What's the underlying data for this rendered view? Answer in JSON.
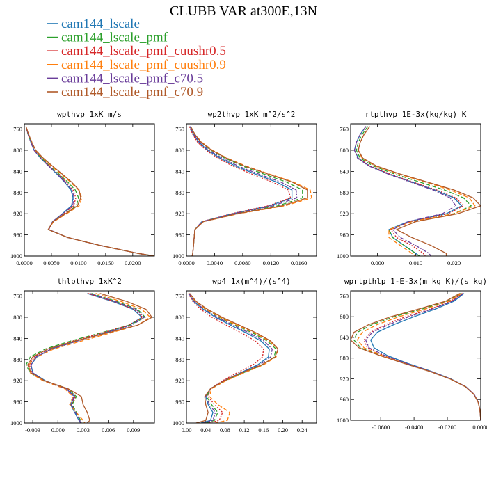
{
  "title": "CLUBB VAR at300E,13N",
  "series": [
    {
      "name": "cam144_lscale",
      "color": "#1f77b4",
      "dash": "solid"
    },
    {
      "name": "cam144_lscale_pmf",
      "color": "#2ca02c",
      "dash": "longdash"
    },
    {
      "name": "cam144_lscale_pmf_cuushr0.5",
      "color": "#d62728",
      "dash": "dot"
    },
    {
      "name": "cam144_lscale_pmf_cuushr0.9",
      "color": "#ff7f0e",
      "dash": "longdash"
    },
    {
      "name": "cam144_lscale_pmf_c70.5",
      "color": "#6a3d9a",
      "dash": "dashdot"
    },
    {
      "name": "cam144_lscale_pmf_c70.9",
      "color": "#b05a2a",
      "dash": "solid"
    }
  ],
  "chart_data": [
    {
      "type": "line",
      "title": "wpthvp  1xK m/s",
      "xlim": [
        0,
        0.024
      ],
      "ylim": [
        1000,
        750
      ],
      "xticks": [
        "0.0000",
        "0.0050",
        "0.0100",
        "0.0150",
        "0.0200"
      ],
      "xtick_values": [
        0,
        0.005,
        0.01,
        0.015,
        0.02
      ],
      "yticks": [
        760,
        800,
        840,
        880,
        920,
        960,
        1000
      ],
      "y": [
        755,
        770,
        785,
        800,
        815,
        830,
        845,
        860,
        875,
        890,
        905,
        920,
        935,
        950,
        965,
        980,
        995,
        1000
      ],
      "series_values": [
        [
          0.0003,
          0.0007,
          0.0012,
          0.0018,
          0.003,
          0.0045,
          0.006,
          0.0074,
          0.0086,
          0.009,
          0.0087,
          0.007,
          0.0052,
          0.0045,
          0.008,
          0.014,
          0.021,
          0.024
        ],
        [
          0.0003,
          0.0007,
          0.0013,
          0.0019,
          0.0032,
          0.0047,
          0.0064,
          0.008,
          0.0094,
          0.01,
          0.0096,
          0.0075,
          0.0053,
          0.0044,
          0.008,
          0.014,
          0.021,
          0.024
        ],
        [
          0.0003,
          0.0007,
          0.0012,
          0.0018,
          0.0031,
          0.0046,
          0.0062,
          0.0077,
          0.009,
          0.0095,
          0.0091,
          0.0072,
          0.0052,
          0.0045,
          0.008,
          0.014,
          0.021,
          0.024
        ],
        [
          0.0003,
          0.0008,
          0.0014,
          0.002,
          0.0034,
          0.005,
          0.0068,
          0.0085,
          0.01,
          0.0106,
          0.0101,
          0.0078,
          0.0054,
          0.0044,
          0.008,
          0.014,
          0.021,
          0.024
        ],
        [
          0.0003,
          0.0007,
          0.0012,
          0.0018,
          0.003,
          0.0045,
          0.0061,
          0.0075,
          0.0088,
          0.0092,
          0.0089,
          0.0071,
          0.0052,
          0.0045,
          0.008,
          0.014,
          0.021,
          0.024
        ],
        [
          0.0003,
          0.0008,
          0.0014,
          0.0021,
          0.0035,
          0.0052,
          0.007,
          0.0087,
          0.0101,
          0.0104,
          0.0098,
          0.0076,
          0.0053,
          0.0044,
          0.008,
          0.014,
          0.021,
          0.024
        ]
      ]
    },
    {
      "type": "line",
      "title": "wp2thvp  1xK m^2/s^2",
      "xlim": [
        0,
        0.0185
      ],
      "ylim": [
        1000,
        750
      ],
      "xticks": [
        "0.0000",
        "0.0040",
        "0.0080",
        "0.0120",
        "0.0160"
      ],
      "xtick_values": [
        0,
        0.004,
        0.008,
        0.012,
        0.016
      ],
      "yticks": [
        760,
        800,
        840,
        880,
        920,
        960,
        1000
      ],
      "y": [
        755,
        770,
        785,
        800,
        815,
        830,
        845,
        860,
        875,
        890,
        905,
        920,
        935,
        950,
        965,
        980,
        995,
        1000
      ],
      "series_values": [
        [
          0.0005,
          0.001,
          0.0018,
          0.003,
          0.0048,
          0.007,
          0.0098,
          0.0128,
          0.015,
          0.015,
          0.0118,
          0.0065,
          0.0022,
          0.0012,
          0.0011,
          0.001,
          0.0009,
          0.0008
        ],
        [
          0.0006,
          0.0012,
          0.0021,
          0.0035,
          0.0055,
          0.008,
          0.011,
          0.0142,
          0.0165,
          0.0165,
          0.013,
          0.007,
          0.0023,
          0.0012,
          0.0011,
          0.001,
          0.0009,
          0.0008
        ],
        [
          0.0004,
          0.0009,
          0.0016,
          0.0028,
          0.0045,
          0.0066,
          0.0093,
          0.0122,
          0.0145,
          0.0148,
          0.0116,
          0.0064,
          0.0022,
          0.0012,
          0.0011,
          0.001,
          0.0009,
          0.0008
        ],
        [
          0.0006,
          0.0012,
          0.0022,
          0.0037,
          0.0058,
          0.0085,
          0.0118,
          0.0152,
          0.0176,
          0.0178,
          0.014,
          0.0074,
          0.0024,
          0.0012,
          0.0011,
          0.001,
          0.0009,
          0.0008
        ],
        [
          0.0005,
          0.0011,
          0.0019,
          0.0032,
          0.0051,
          0.0074,
          0.0103,
          0.0134,
          0.0156,
          0.0157,
          0.0123,
          0.0067,
          0.0022,
          0.0012,
          0.0011,
          0.001,
          0.0009,
          0.0008
        ],
        [
          0.0006,
          0.0012,
          0.0021,
          0.0036,
          0.0057,
          0.0083,
          0.0116,
          0.015,
          0.0172,
          0.0172,
          0.0136,
          0.0072,
          0.0024,
          0.0012,
          0.0011,
          0.001,
          0.0009,
          0.0008
        ]
      ]
    },
    {
      "type": "line",
      "title": "rtpthvp  1E-3x(kg/kg) K",
      "xlim": [
        -0.007,
        0.027
      ],
      "ylim": [
        1000,
        750
      ],
      "xticks": [
        "0.000",
        "0.010",
        "0.020"
      ],
      "xtick_values": [
        0,
        0.01,
        0.02
      ],
      "yticks": [
        760,
        800,
        840,
        880,
        920,
        960,
        1000
      ],
      "y": [
        755,
        770,
        785,
        800,
        815,
        830,
        845,
        860,
        875,
        890,
        905,
        920,
        935,
        950,
        965,
        980,
        995,
        1000
      ],
      "series_values": [
        [
          -0.003,
          -0.0045,
          -0.0055,
          -0.006,
          -0.005,
          -0.002,
          0.003,
          0.009,
          0.015,
          0.02,
          0.022,
          0.018,
          0.008,
          0.003,
          0.004,
          0.007,
          0.01,
          0.011
        ],
        [
          -0.0025,
          -0.004,
          -0.005,
          -0.0055,
          -0.0045,
          -0.001,
          0.0045,
          0.011,
          0.0175,
          0.0225,
          0.0245,
          0.02,
          0.009,
          0.003,
          0.004,
          0.007,
          0.01,
          0.011
        ],
        [
          -0.003,
          -0.0045,
          -0.0055,
          -0.006,
          -0.005,
          -0.0018,
          0.0033,
          0.0093,
          0.0155,
          0.0205,
          0.0225,
          0.0185,
          0.0085,
          0.0035,
          0.005,
          0.009,
          0.012,
          0.0125
        ],
        [
          -0.002,
          -0.0035,
          -0.0045,
          -0.005,
          -0.004,
          -0.0005,
          0.0055,
          0.0125,
          0.019,
          0.024,
          0.0255,
          0.02,
          0.009,
          0.003,
          0.003,
          0.006,
          0.009,
          0.01
        ],
        [
          -0.003,
          -0.0045,
          -0.0055,
          -0.006,
          -0.0052,
          -0.0022,
          0.0028,
          0.0086,
          0.0145,
          0.019,
          0.0205,
          0.017,
          0.008,
          0.004,
          0.006,
          0.01,
          0.0135,
          0.014
        ],
        [
          -0.002,
          -0.0035,
          -0.0045,
          -0.005,
          -0.0038,
          -0.0002,
          0.006,
          0.013,
          0.02,
          0.025,
          0.027,
          0.021,
          0.01,
          0.005,
          0.009,
          0.014,
          0.018,
          0.018
        ]
      ]
    },
    {
      "type": "line",
      "title": "thlpthvp  1xK^2",
      "xlim": [
        -0.004,
        0.0115
      ],
      "ylim": [
        1000,
        750
      ],
      "xticks": [
        "-0.003",
        "0.000",
        "0.003",
        "0.006",
        "0.009"
      ],
      "xtick_values": [
        -0.003,
        0,
        0.003,
        0.006,
        0.009
      ],
      "yticks": [
        760,
        800,
        840,
        880,
        920,
        960,
        1000
      ],
      "y": [
        755,
        770,
        785,
        800,
        815,
        830,
        845,
        860,
        875,
        890,
        905,
        920,
        935,
        950,
        965,
        980,
        995,
        1000
      ],
      "series_values": [
        [
          0.0035,
          0.0065,
          0.009,
          0.01,
          0.0085,
          0.0055,
          0.0022,
          -0.0008,
          -0.0025,
          -0.0032,
          -0.003,
          -0.0015,
          0.001,
          0.002,
          0.0015,
          0.002,
          0.0025,
          0.0027
        ],
        [
          0.004,
          0.007,
          0.0095,
          0.0104,
          0.0085,
          0.005,
          0.0015,
          -0.0015,
          -0.0033,
          -0.0038,
          -0.0033,
          -0.0017,
          0.0012,
          0.0022,
          0.0017,
          0.0022,
          0.0027,
          0.0028
        ],
        [
          0.0036,
          0.0066,
          0.0091,
          0.0101,
          0.0084,
          0.0052,
          0.0018,
          -0.0011,
          -0.0028,
          -0.0034,
          -0.0031,
          -0.0016,
          0.0011,
          0.0021,
          0.0016,
          0.0021,
          0.0026,
          0.0027
        ],
        [
          0.0045,
          0.0075,
          0.01,
          0.011,
          0.0095,
          0.0062,
          0.0028,
          -0.0005,
          -0.0025,
          -0.0035,
          -0.0033,
          -0.0018,
          0.0008,
          0.0018,
          0.0014,
          0.0022,
          0.003,
          0.0032
        ],
        [
          0.0038,
          0.0068,
          0.0093,
          0.0103,
          0.0088,
          0.0057,
          0.0023,
          -0.0008,
          -0.0026,
          -0.0032,
          -0.003,
          -0.0016,
          0.001,
          0.0019,
          0.0016,
          0.0021,
          0.0026,
          0.0027
        ],
        [
          0.005,
          0.0082,
          0.0105,
          0.0112,
          0.0095,
          0.0058,
          0.002,
          -0.0012,
          -0.003,
          -0.0036,
          -0.0032,
          -0.0016,
          0.0012,
          0.0028,
          0.003,
          0.0035,
          0.0038,
          0.0035
        ]
      ]
    },
    {
      "type": "line",
      "title": "wp4  1x(m^4)/(s^4)",
      "xlim": [
        0,
        0.27
      ],
      "ylim": [
        1000,
        750
      ],
      "xticks": [
        "0.00",
        "0.04",
        "0.08",
        "0.12",
        "0.16",
        "0.20",
        "0.24"
      ],
      "xtick_values": [
        0,
        0.04,
        0.08,
        0.12,
        0.16,
        0.2,
        0.24
      ],
      "yticks": [
        760,
        800,
        840,
        880,
        920,
        960,
        1000
      ],
      "y": [
        755,
        770,
        785,
        800,
        815,
        830,
        845,
        860,
        875,
        890,
        905,
        920,
        935,
        950,
        965,
        980,
        995,
        1000
      ],
      "series_values": [
        [
          0.005,
          0.015,
          0.035,
          0.06,
          0.092,
          0.125,
          0.155,
          0.172,
          0.17,
          0.148,
          0.112,
          0.078,
          0.05,
          0.04,
          0.045,
          0.055,
          0.05,
          0.03
        ],
        [
          0.006,
          0.018,
          0.04,
          0.068,
          0.102,
          0.138,
          0.168,
          0.186,
          0.182,
          0.158,
          0.118,
          0.08,
          0.05,
          0.042,
          0.052,
          0.065,
          0.058,
          0.04
        ],
        [
          0.004,
          0.013,
          0.03,
          0.053,
          0.083,
          0.115,
          0.143,
          0.16,
          0.158,
          0.138,
          0.105,
          0.075,
          0.05,
          0.045,
          0.058,
          0.075,
          0.068,
          0.045
        ],
        [
          0.006,
          0.018,
          0.041,
          0.07,
          0.105,
          0.142,
          0.172,
          0.19,
          0.186,
          0.16,
          0.12,
          0.082,
          0.052,
          0.048,
          0.065,
          0.09,
          0.085,
          0.06
        ],
        [
          0.005,
          0.016,
          0.037,
          0.064,
          0.097,
          0.131,
          0.161,
          0.178,
          0.175,
          0.152,
          0.114,
          0.078,
          0.05,
          0.04,
          0.048,
          0.06,
          0.055,
          0.035
        ],
        [
          0.007,
          0.02,
          0.044,
          0.074,
          0.11,
          0.146,
          0.175,
          0.19,
          0.184,
          0.156,
          0.115,
          0.079,
          0.05,
          0.038,
          0.04,
          0.045,
          0.04,
          0.02
        ]
      ]
    },
    {
      "type": "line",
      "title": "wprtpthlp  1-E-3x(m kg K)/(s kg)",
      "xlim": [
        -0.078,
        0
      ],
      "ylim": [
        1000,
        750
      ],
      "xticks": [
        "-0.0600",
        "-0.0400",
        "-0.0200",
        "0.0000"
      ],
      "xtick_values": [
        -0.06,
        -0.04,
        -0.02,
        0
      ],
      "yticks": [
        760,
        800,
        840,
        880,
        920,
        960,
        1000
      ],
      "y": [
        755,
        770,
        785,
        800,
        815,
        830,
        845,
        860,
        875,
        890,
        905,
        920,
        935,
        950,
        965,
        980,
        995,
        1000
      ],
      "series_values": [
        [
          -0.01,
          -0.016,
          -0.027,
          -0.04,
          -0.052,
          -0.062,
          -0.066,
          -0.064,
          -0.056,
          -0.044,
          -0.03,
          -0.018,
          -0.009,
          -0.004,
          -0.0015,
          -0.0005,
          -0.0001,
          0
        ],
        [
          -0.012,
          -0.02,
          -0.035,
          -0.052,
          -0.065,
          -0.074,
          -0.076,
          -0.072,
          -0.06,
          -0.046,
          -0.031,
          -0.0185,
          -0.0092,
          -0.0041,
          -0.0015,
          -0.0005,
          -0.0001,
          0
        ],
        [
          -0.011,
          -0.018,
          -0.03,
          -0.045,
          -0.057,
          -0.066,
          -0.07,
          -0.068,
          -0.058,
          -0.045,
          -0.0305,
          -0.0182,
          -0.0091,
          -0.004,
          -0.0015,
          -0.0005,
          -0.0001,
          0
        ],
        [
          -0.0115,
          -0.019,
          -0.033,
          -0.049,
          -0.062,
          -0.071,
          -0.074,
          -0.07,
          -0.059,
          -0.0455,
          -0.0308,
          -0.0184,
          -0.0092,
          -0.0041,
          -0.0015,
          -0.0005,
          -0.0001,
          0
        ],
        [
          -0.0105,
          -0.017,
          -0.029,
          -0.043,
          -0.055,
          -0.065,
          -0.069,
          -0.067,
          -0.0575,
          -0.0448,
          -0.0304,
          -0.0182,
          -0.0091,
          -0.004,
          -0.0015,
          -0.0005,
          -0.0001,
          0
        ],
        [
          -0.0125,
          -0.021,
          -0.037,
          -0.054,
          -0.067,
          -0.076,
          -0.078,
          -0.073,
          -0.0605,
          -0.0462,
          -0.0312,
          -0.0186,
          -0.0093,
          -0.0042,
          -0.0016,
          -0.0005,
          -0.0001,
          0
        ]
      ]
    }
  ]
}
